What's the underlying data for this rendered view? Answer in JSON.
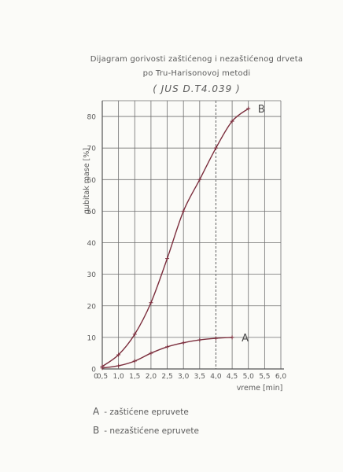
{
  "chart_data": {
    "type": "line",
    "title": "Dijagram gorivosti zaštićenog i nezaštićenog drveta",
    "subtitle": "po Tru-Harisonovoj metodi",
    "standard": "( JUS D.T4.039 )",
    "xlabel": "vreme [min]",
    "ylabel": "gubitak mase [%]",
    "xlim": [
      0.5,
      6.0
    ],
    "ylim": [
      0,
      85
    ],
    "x_ticks": [
      0.5,
      1.0,
      1.5,
      2.0,
      2.5,
      3.0,
      3.5,
      4.0,
      4.5,
      5.0,
      5.5,
      6.0
    ],
    "x_tick_labels": [
      "0,5",
      "1,0",
      "1,5",
      "2,0",
      "2,5",
      "3,0",
      "3,5",
      "4,0",
      "4,5",
      "5,0",
      "5,5",
      "6,0"
    ],
    "y_ticks": [
      0,
      10,
      20,
      30,
      40,
      50,
      60,
      70,
      80
    ],
    "y_tick_labels": [
      "0",
      "10",
      "20",
      "30",
      "40",
      "50",
      "60",
      "70",
      "80"
    ],
    "x_zero_label": "0",
    "grid": true,
    "reference_line_x": 4.0,
    "series": [
      {
        "name": "A",
        "values_x": [
          0.5,
          1.0,
          1.5,
          2.0,
          2.5,
          3.0,
          3.5,
          4.0,
          4.5
        ],
        "values_y": [
          0.3,
          1.0,
          2.5,
          5.0,
          7.0,
          8.3,
          9.2,
          9.7,
          10.0
        ]
      },
      {
        "name": "B",
        "values_x": [
          0.5,
          1.0,
          1.5,
          2.0,
          2.5,
          3.0,
          3.5,
          4.0,
          4.5,
          5.0
        ],
        "values_y": [
          0.8,
          4.5,
          11.0,
          21.0,
          35.0,
          50.0,
          60.0,
          70.0,
          78.5,
          82.5
        ]
      }
    ],
    "series_color": "#7b2d3c",
    "grid_color": "#6f6f6f"
  },
  "legend": [
    {
      "key": "A",
      "text": "- zaštićene epruvete"
    },
    {
      "key": "B",
      "text": "- nezaštićene epruvete"
    }
  ]
}
